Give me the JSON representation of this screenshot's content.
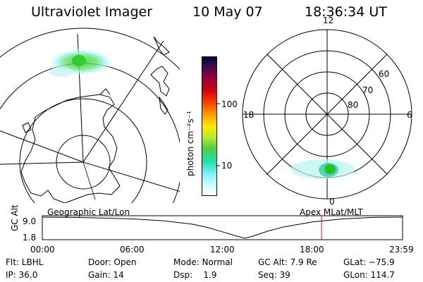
{
  "header": {
    "instrument": "Ultraviolet Imager",
    "date": "10 May 07",
    "time": "18:36:34 UT"
  },
  "colorbar": {
    "unit_label": "photon cm⁻²s⁻¹",
    "tick_labels": [
      "100",
      "10"
    ],
    "colors": [
      "#000040",
      "#5a0a5a",
      "#b0004a",
      "#d80000",
      "#ff5a00",
      "#ff9a00",
      "#ffe000",
      "#c8e800",
      "#40d040",
      "#20e0a0",
      "#80f0ff",
      "#c8fcff",
      "#ffffff"
    ]
  },
  "left_panel": {
    "label": "Geographic Lat/Lon"
  },
  "right_panel": {
    "label": "Apex MLat/MLT",
    "mlt_labels": [
      "12",
      "18",
      "6",
      "0"
    ],
    "mlat_labels": [
      "60",
      "70",
      "80"
    ]
  },
  "timeline": {
    "axis_title": "GC Alt",
    "y_ticks": [
      "9.0",
      "1.8"
    ],
    "x_ticks": [
      "00:00",
      "06:00",
      "12:00",
      "18:00",
      "23:59"
    ],
    "altitude_curve": {
      "x_hours": [
        0,
        2,
        4,
        6,
        8,
        10,
        11,
        12,
        13,
        13.5,
        14,
        15,
        16,
        18,
        20,
        22,
        23.98
      ],
      "alt_re": [
        9.0,
        8.9,
        8.7,
        8.4,
        7.8,
        6.6,
        5.5,
        4.0,
        2.5,
        1.8,
        2.5,
        4.2,
        5.6,
        7.4,
        8.4,
        8.9,
        9.0
      ]
    },
    "current_marker_hours": 18.6
  },
  "info": {
    "flt": "Flt: LBHL",
    "door": "Door: Open",
    "mode": "Mode: Normal",
    "gc_alt": "GC Alt: 7.9 Re",
    "glat": "GLat: −75.9",
    "ip": "IP: 36.0",
    "gain": "Gain: 14",
    "dsp": "Dsp:    1.9",
    "seq": "Seq: 39",
    "glon": "GLon: 114.7"
  }
}
